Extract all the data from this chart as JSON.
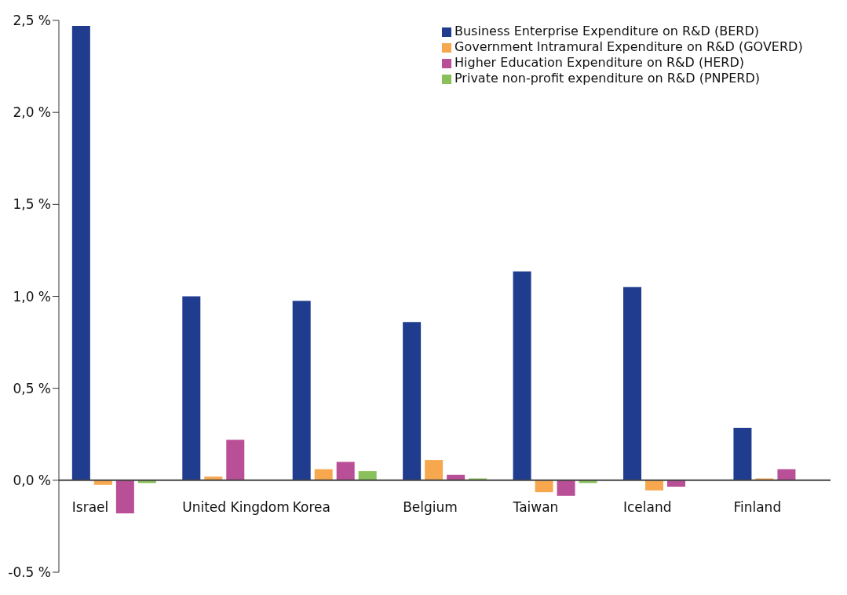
{
  "chart_data": {
    "type": "bar",
    "categories": [
      "Israel",
      "United Kingdom",
      "Korea",
      "Belgium",
      "Taiwan",
      "Iceland",
      "Finland"
    ],
    "series": [
      {
        "name": "Business Enterprise Expenditure on R&D (BERD)",
        "color": "#1f3c8f",
        "values": [
          2.47,
          1.0,
          0.975,
          0.86,
          1.135,
          1.05,
          0.285
        ]
      },
      {
        "name": "Government Intramural Expenditure on R&D (GOVERD)",
        "color": "#f7a84f",
        "values": [
          -0.025,
          0.02,
          0.06,
          0.11,
          -0.065,
          -0.055,
          0.01
        ]
      },
      {
        "name": "Higher Education Expenditure on R&D (HERD)",
        "color": "#b94f96",
        "values": [
          -0.18,
          0.22,
          0.1,
          0.03,
          -0.085,
          -0.035,
          0.06
        ]
      },
      {
        "name": "Private non-profit expenditure on R&D (PNPERD)",
        "color": "#89c05a",
        "values": [
          -0.015,
          0,
          0.05,
          0.01,
          -0.015,
          0,
          0
        ]
      }
    ],
    "ylim": [
      -0.5,
      2.5
    ],
    "yticks": [
      {
        "value": -0.5,
        "label": "-0.5 %"
      },
      {
        "value": 0,
        "label": "0,0 %"
      },
      {
        "value": 0.5,
        "label": "0,5 %"
      },
      {
        "value": 1,
        "label": "1,0 %"
      },
      {
        "value": 1.5,
        "label": "1,5 %"
      },
      {
        "value": 2,
        "label": "2,0 %"
      },
      {
        "value": 2.5,
        "label": "2,5 %"
      }
    ],
    "grid": false,
    "legend": "top right"
  }
}
